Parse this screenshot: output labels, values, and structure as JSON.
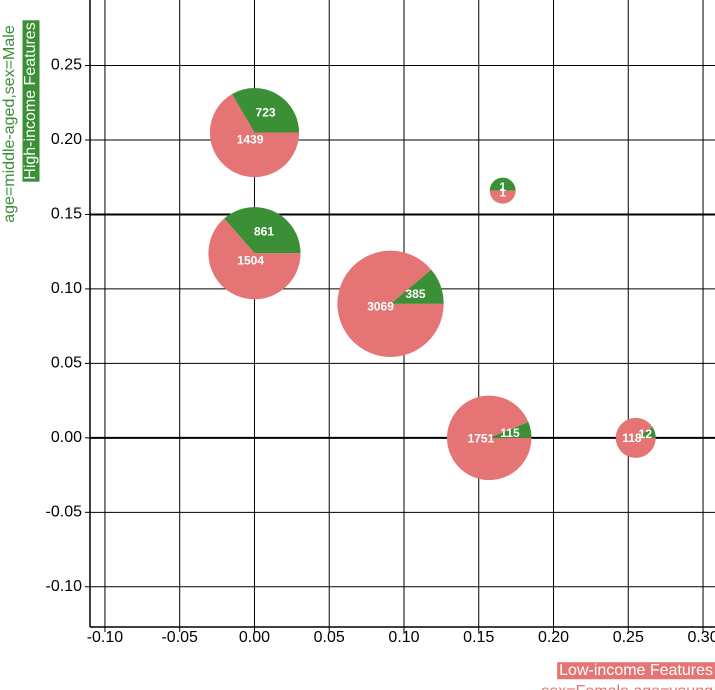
{
  "chart_data": {
    "type": "pie-scatter",
    "xlabel": "sex=Female,age=young",
    "ylabel": "age=middle-aged,sex=Male",
    "x": [
      0.0,
      0.0,
      0.091,
      0.166,
      0.157,
      0.255
    ],
    "y": [
      0.205,
      0.124,
      0.09,
      0.166,
      0.0,
      0.0
    ],
    "series": [
      {
        "name": "Low-income Features",
        "color": "#e57575",
        "values": [
          1439,
          1504,
          3069,
          1,
          1751,
          118
        ]
      },
      {
        "name": "High-income Features",
        "color": "#3b8f35",
        "values": [
          723,
          861,
          385,
          1,
          115,
          12
        ]
      }
    ],
    "xlim": [
      -0.11,
      0.308
    ],
    "ylim": [
      -0.127,
      0.294
    ],
    "xticks": [
      {
        "value": -0.1,
        "label": "-0.10"
      },
      -0.05,
      {
        "value": 0,
        "label": "0.00"
      },
      0.05,
      {
        "value": 0.1,
        "label": "0.10"
      },
      0.15,
      {
        "value": 0.2,
        "label": "0.20"
      },
      0.25,
      {
        "value": 0.3,
        "label": "0.30"
      }
    ],
    "yticks": [
      {
        "value": -0.1,
        "label": "-0.10"
      },
      -0.05,
      {
        "value": 0,
        "label": "0.00"
      },
      0.05,
      {
        "value": 0.1,
        "label": "0.10"
      },
      0.15,
      {
        "value": 0.2,
        "label": "0.20"
      },
      0.25
    ],
    "grid": true,
    "y_reference_lines": [
      0,
      0.15
    ]
  }
}
